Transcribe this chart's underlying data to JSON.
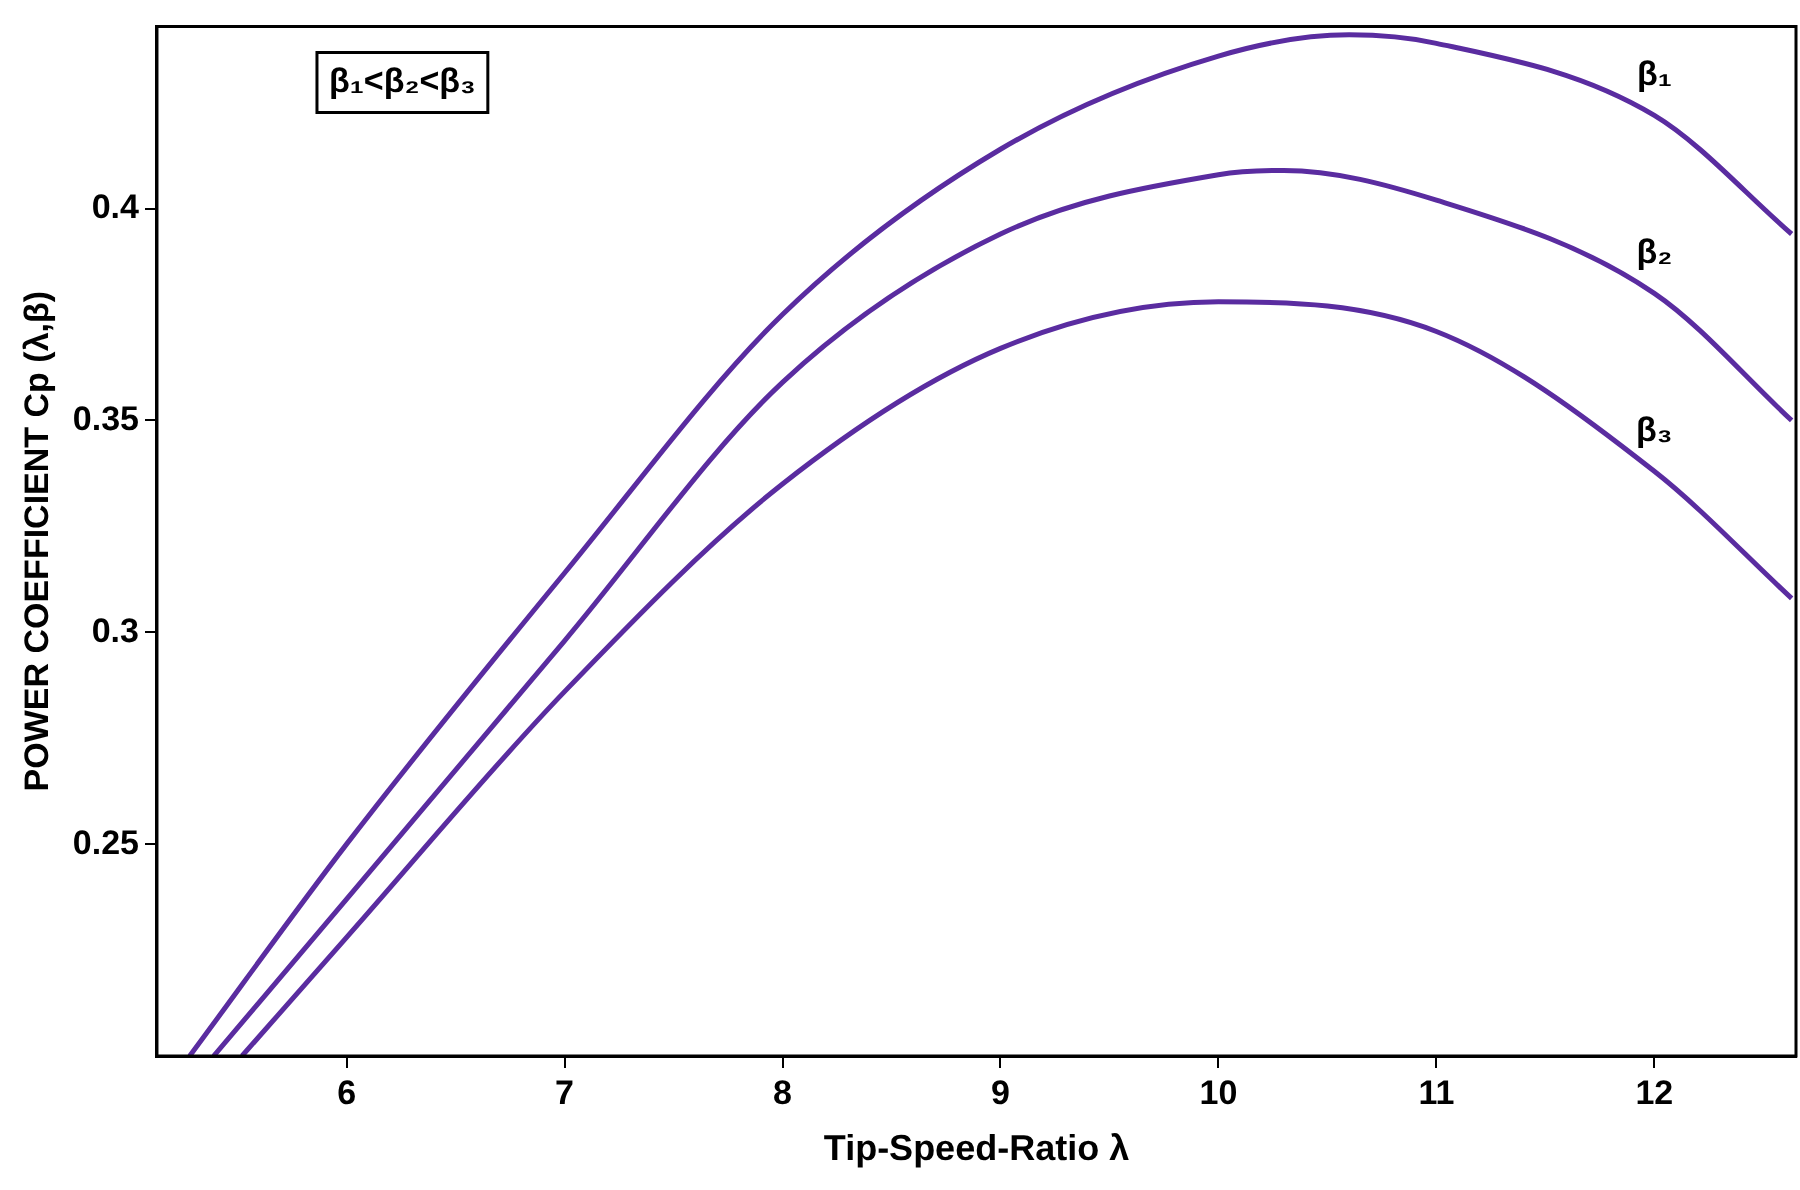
{
  "chart_data": {
    "type": "line",
    "xlabel": "Tip-Speed-Ratio λ",
    "ylabel": "POWER COEFFICIENT Cp (λ,β)",
    "xlim": [
      5.13,
      12.65
    ],
    "xticks": [
      6,
      7,
      8,
      9,
      10,
      11,
      12
    ],
    "ylim": [
      0.2,
      0.443
    ],
    "yticks": [
      0.25,
      0.3,
      0.35,
      0.4
    ],
    "grid": false,
    "legend": false,
    "marker": "none",
    "line_style": "solid",
    "annotations": [
      "β₁<β₂<β₃"
    ],
    "series": [
      {
        "name": "β₁",
        "color": "#5a2ca0",
        "x": [
          5.28,
          6,
          7,
          8,
          9,
          10,
          10.6,
          11,
          12,
          12.63
        ],
        "values": [
          0.2,
          0.25,
          0.314,
          0.375,
          0.414,
          0.436,
          0.441,
          0.439,
          0.422,
          0.394
        ]
      },
      {
        "name": "β₂",
        "color": "#5a2ca0",
        "x": [
          5.39,
          6,
          7,
          8,
          9,
          10,
          10.3,
          11,
          12,
          12.63
        ],
        "values": [
          0.2,
          0.237,
          0.298,
          0.359,
          0.394,
          0.408,
          0.409,
          0.402,
          0.38,
          0.35
        ]
      },
      {
        "name": "β₃",
        "color": "#5a2ca0",
        "x": [
          5.52,
          6,
          7,
          8,
          9,
          10,
          11,
          12,
          12.63
        ],
        "values": [
          0.2,
          0.228,
          0.286,
          0.335,
          0.367,
          0.378,
          0.371,
          0.338,
          0.308
        ]
      }
    ]
  }
}
